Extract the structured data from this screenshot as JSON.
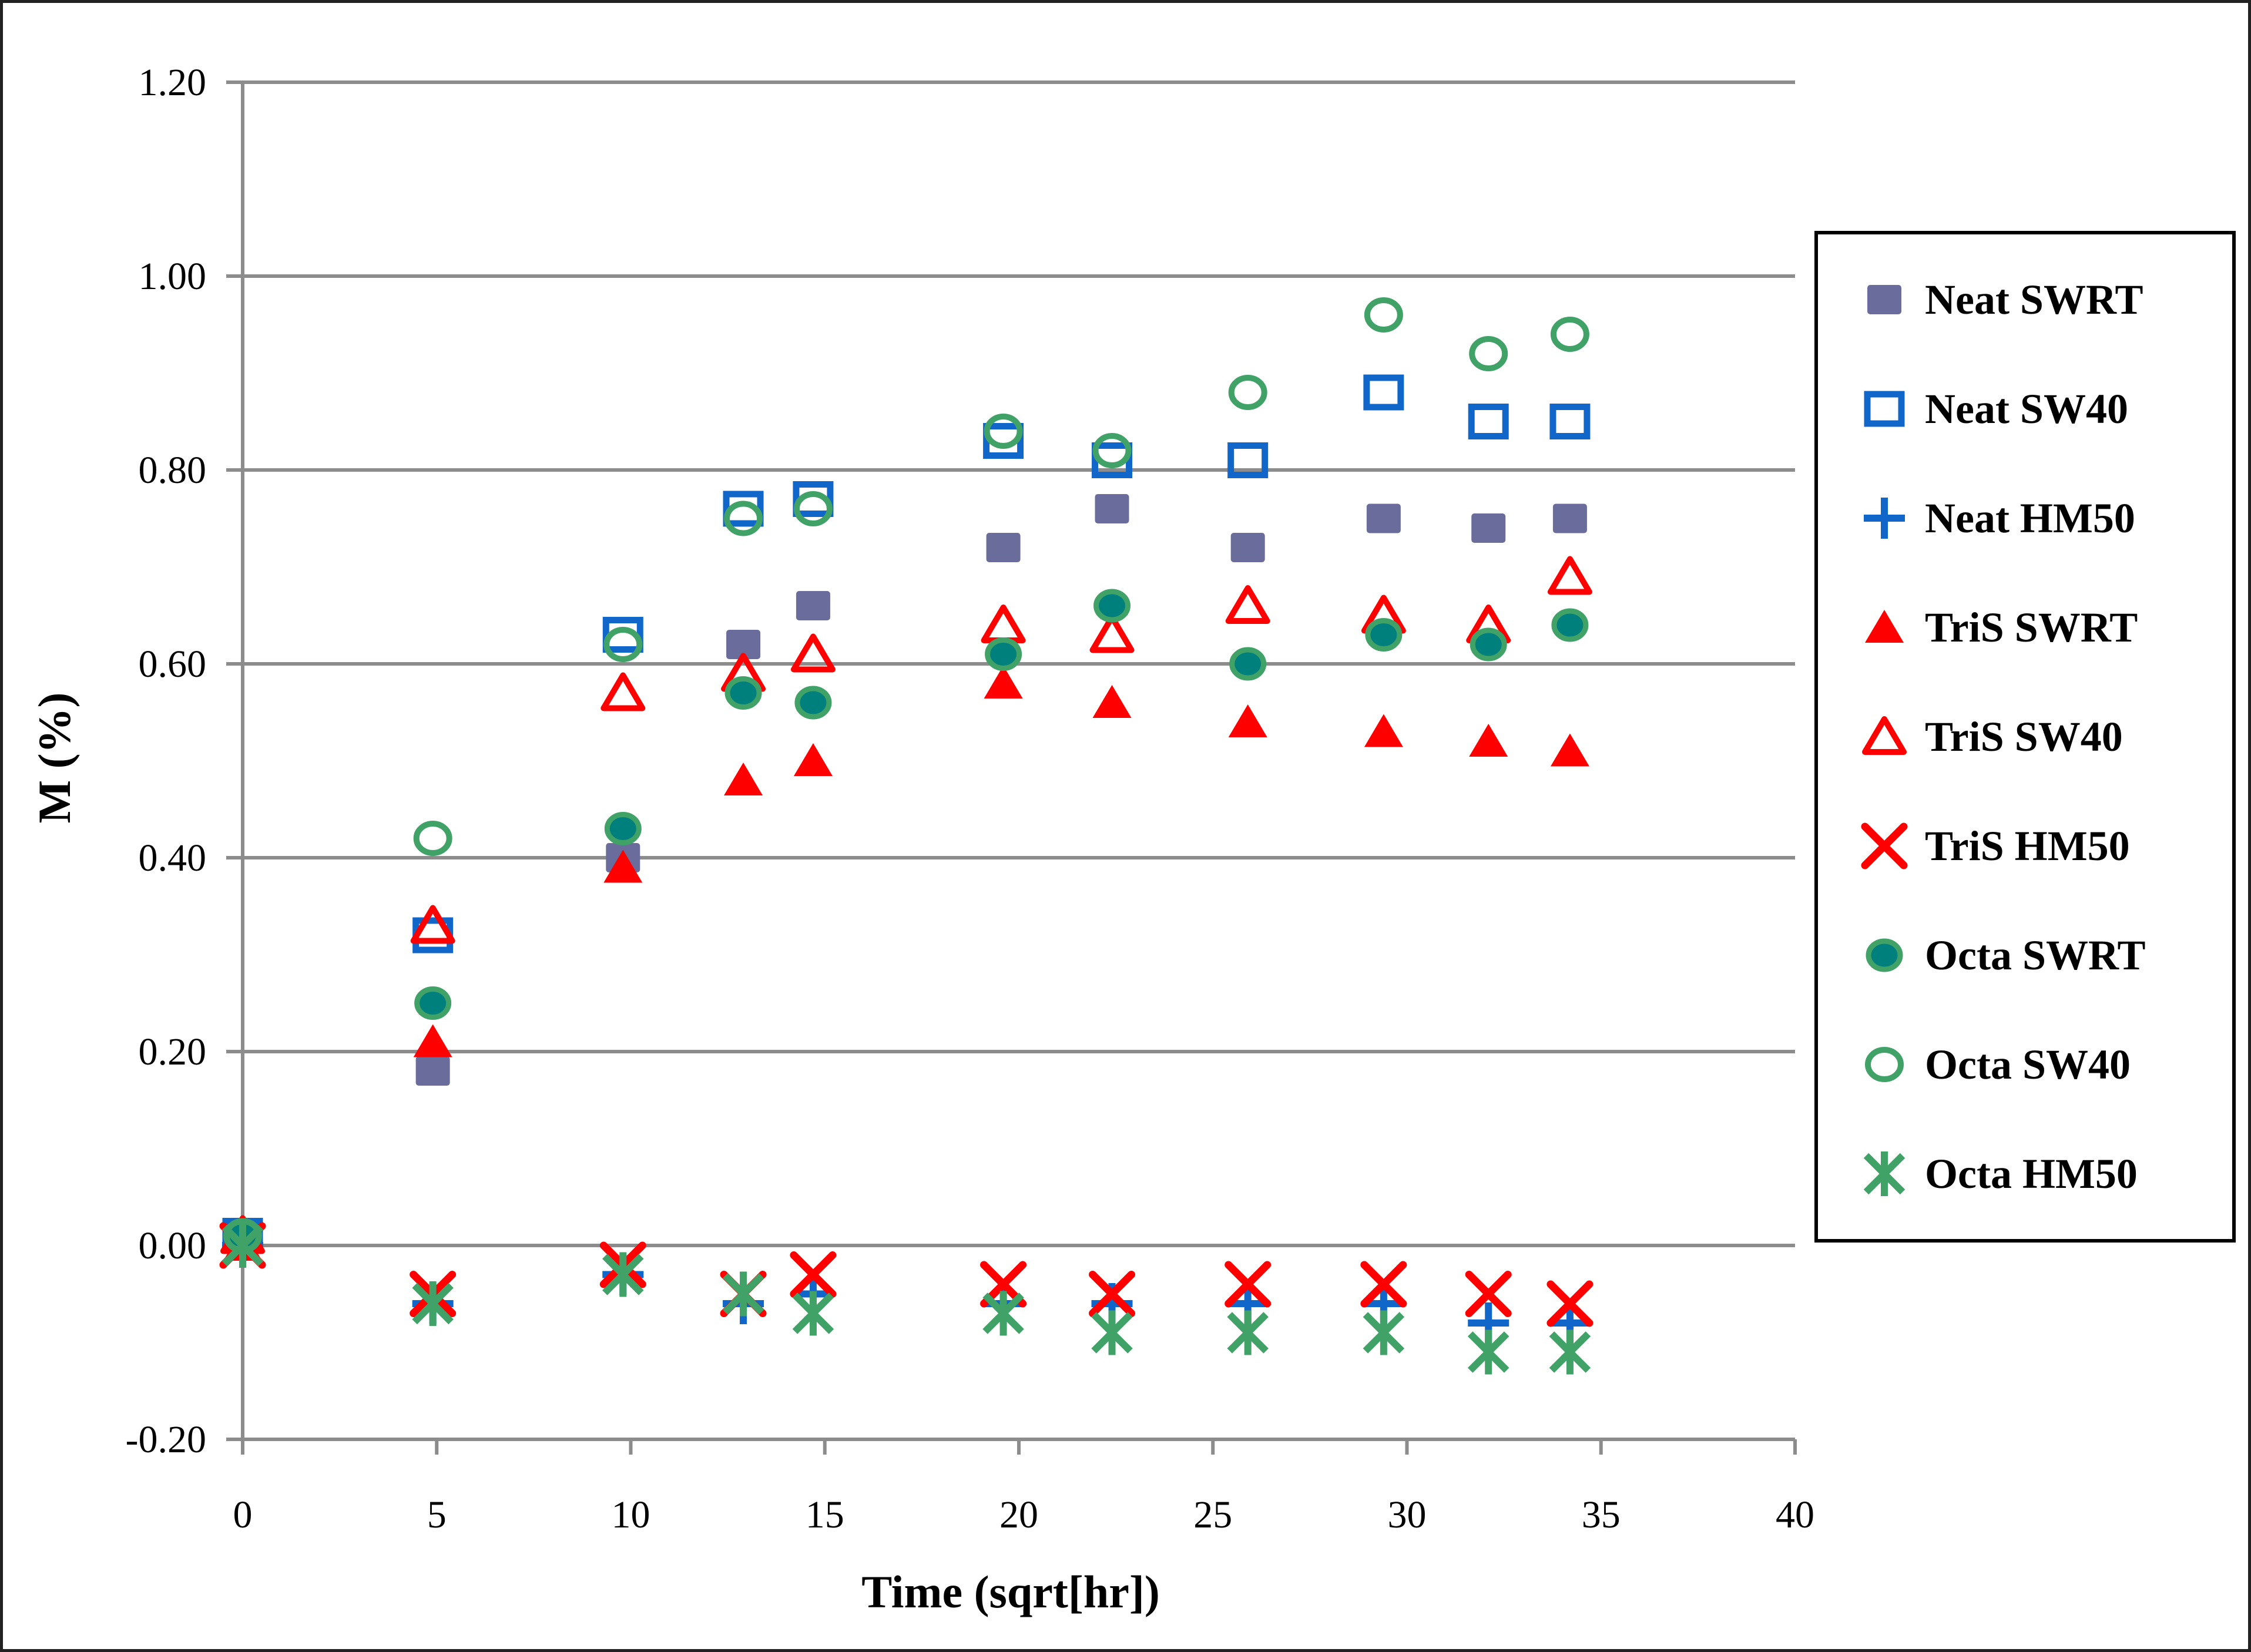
{
  "chart_data": {
    "type": "scatter",
    "title": "",
    "xlabel": "Time (sqrt[hr])",
    "ylabel": "M (%)",
    "xlim": [
      0,
      40
    ],
    "ylim": [
      -0.2,
      1.2
    ],
    "x_ticks": [
      0,
      5,
      10,
      15,
      20,
      25,
      30,
      35,
      40
    ],
    "x_tick_labels": [
      "0",
      "5",
      "10",
      "15",
      "20",
      "25",
      "30",
      "35",
      "40"
    ],
    "y_ticks": [
      1.2,
      1.0,
      0.8,
      0.6,
      0.4,
      0.2,
      0.0,
      -0.2
    ],
    "y_tick_labels": [
      "1.20",
      "1.00",
      "0.80",
      "0.60",
      "0.40",
      "0.20",
      "0.00",
      "-0.20"
    ],
    "grid": "horizontal-only",
    "grid_color": "#8C8C8C",
    "axis_color": "#8C8C8C",
    "legend_position": "right-outside",
    "x": [
      0,
      4.9,
      9.8,
      12.9,
      14.7,
      19.6,
      22.4,
      25.9,
      29.4,
      32.1,
      34.2
    ],
    "series": [
      {
        "name": "Neat SWRT",
        "marker": "square-filled",
        "color": "#6A6C9C",
        "outline": "#6A6C9C",
        "values": [
          0.01,
          0.18,
          0.4,
          0.62,
          0.66,
          0.72,
          0.76,
          0.72,
          0.75,
          0.74,
          0.75
        ]
      },
      {
        "name": "Neat SW40",
        "marker": "square-open",
        "color": "#1167C9",
        "outline": "#1167C9",
        "values": [
          0.01,
          0.32,
          0.63,
          0.76,
          0.77,
          0.83,
          0.81,
          0.81,
          0.88,
          0.85,
          0.85
        ]
      },
      {
        "name": "Neat HM50",
        "marker": "plus",
        "color": "#1167C9",
        "outline": "#1167C9",
        "values": [
          0.0,
          -0.06,
          -0.03,
          -0.06,
          -0.05,
          -0.06,
          -0.06,
          -0.06,
          -0.06,
          -0.08,
          -0.08
        ]
      },
      {
        "name": "TriS SWRT",
        "marker": "triangle-filled",
        "color": "#FE0000",
        "outline": "#FE0000",
        "values": [
          0.0,
          0.21,
          0.39,
          0.48,
          0.5,
          0.58,
          0.56,
          0.54,
          0.53,
          0.52,
          0.51
        ]
      },
      {
        "name": "TriS SW40",
        "marker": "triangle-open",
        "color": "#FE0000",
        "outline": "#FE0000",
        "values": [
          0.01,
          0.33,
          0.57,
          0.59,
          0.61,
          0.64,
          0.63,
          0.66,
          0.65,
          0.64,
          0.69
        ]
      },
      {
        "name": "TriS HM50",
        "marker": "x",
        "color": "#FE0000",
        "outline": "#FE0000",
        "values": [
          0.0,
          -0.05,
          -0.02,
          -0.05,
          -0.03,
          -0.04,
          -0.05,
          -0.04,
          -0.04,
          -0.05,
          -0.06
        ]
      },
      {
        "name": "Octa SWRT",
        "marker": "circle-filled",
        "color": "#00807D",
        "outline": "#41A268",
        "values": [
          0.01,
          0.25,
          0.43,
          0.57,
          0.56,
          0.61,
          0.66,
          0.6,
          0.63,
          0.62,
          0.64
        ]
      },
      {
        "name": "Octa SW40",
        "marker": "circle-open",
        "color": "#41A268",
        "outline": "#41A268",
        "values": [
          0.01,
          0.42,
          0.62,
          0.75,
          0.76,
          0.84,
          0.82,
          0.88,
          0.96,
          0.92,
          0.94
        ]
      },
      {
        "name": "Octa HM50",
        "marker": "asterisk",
        "color": "#41A268",
        "outline": "#41A268",
        "values": [
          0.0,
          -0.06,
          -0.03,
          -0.05,
          -0.07,
          -0.07,
          -0.09,
          -0.09,
          -0.09,
          -0.11,
          -0.11
        ]
      }
    ]
  }
}
